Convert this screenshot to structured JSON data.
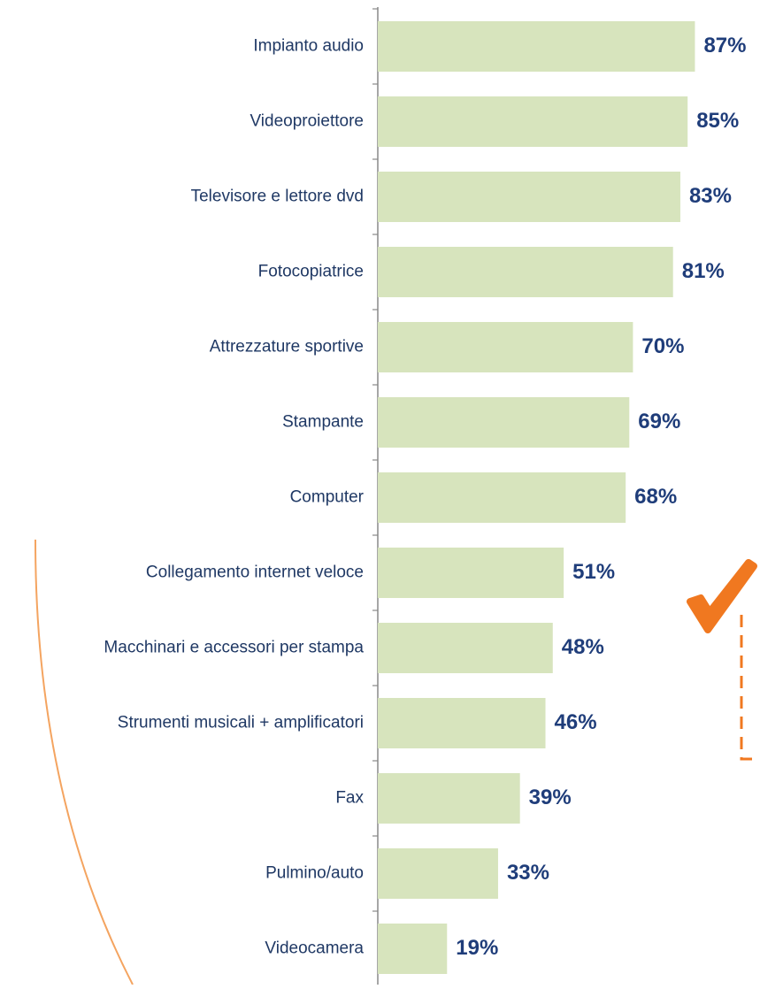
{
  "chart_data": {
    "type": "bar",
    "orientation": "horizontal",
    "color": "#d7e4bd",
    "categories": [
      "Impianto audio",
      "Videoproiettore",
      "Televisore e lettore dvd",
      "Fotocopiatrice",
      "Attrezzature sportive",
      "Stampante",
      "Computer",
      "Collegamento internet veloce",
      "Macchinari e accessori per stampa",
      "Strumenti musicali + amplificatori",
      "Fax",
      "Pulmino/auto",
      "Videocamera"
    ],
    "values": [
      87,
      85,
      83,
      81,
      70,
      69,
      68,
      51,
      48,
      46,
      39,
      33,
      19
    ],
    "value_labels": [
      "87%",
      "85%",
      "83%",
      "81%",
      "70%",
      "69%",
      "68%",
      "51%",
      "48%",
      "46%",
      "39%",
      "33%",
      "19%"
    ]
  }
}
